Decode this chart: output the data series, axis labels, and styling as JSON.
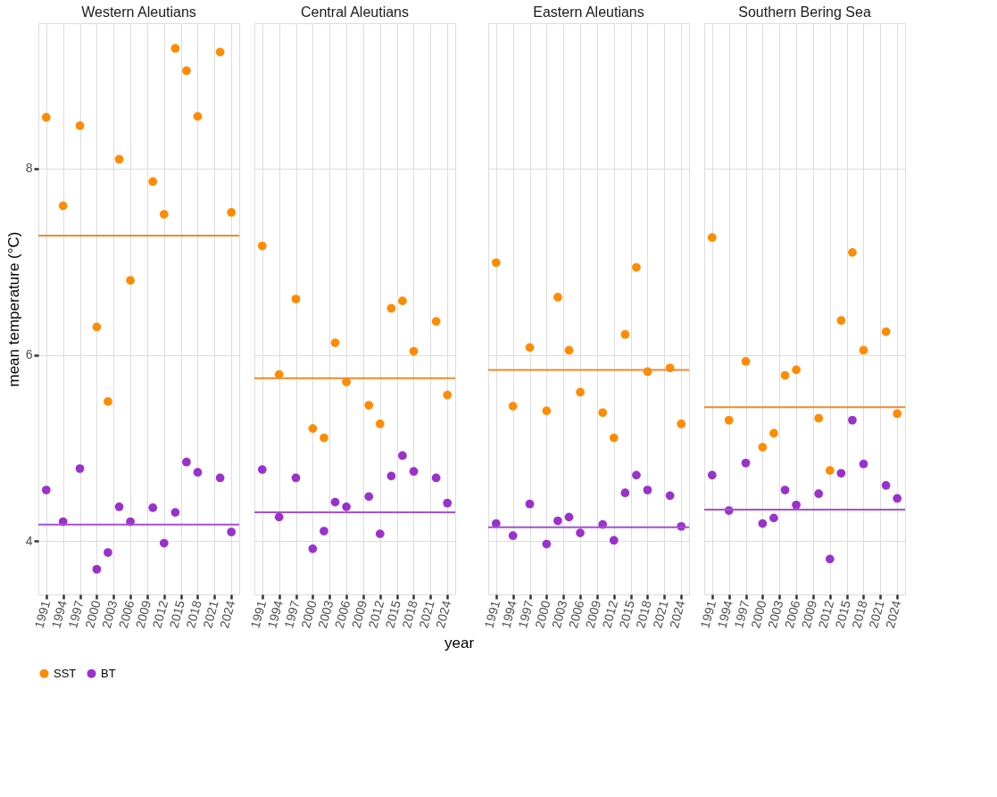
{
  "chart_data": [
    {
      "type": "scatter",
      "title": "Western Aleutians",
      "ylabel": "mean temperature (°C)",
      "legend": "bottom",
      "grid": true,
      "marker": "circle",
      "x": [
        1991,
        1994,
        1997,
        2000,
        2002,
        2004,
        2006,
        2010,
        2012,
        2014,
        2016,
        2018,
        2022,
        2024
      ],
      "xlim": [
        1989.6,
        2025.4
      ],
      "xticks": [
        1991,
        1994,
        1997,
        2000,
        2003,
        2006,
        2009,
        2012,
        2015,
        2018,
        2021,
        2024
      ],
      "ylim": [
        3.43,
        9.56
      ],
      "yticks": [
        4,
        6,
        8
      ],
      "series": [
        {
          "name": "SST",
          "color": "#ff8c00",
          "values": [
            8.55,
            7.6,
            8.46,
            6.3,
            5.5,
            8.1,
            6.8,
            7.86,
            7.51,
            9.29,
            9.05,
            8.56,
            9.25,
            7.53
          ]
        },
        {
          "name": "BT",
          "color": "#9932cc",
          "values": [
            4.55,
            4.21,
            4.78,
            3.7,
            3.88,
            4.37,
            4.21,
            4.36,
            3.98,
            4.31,
            4.85,
            4.74,
            4.68,
            4.1
          ]
        }
      ],
      "ref_lines": [
        {
          "axis": "y",
          "value": 7.28,
          "color": "#ee8a2a"
        },
        {
          "axis": "y",
          "value": 4.18,
          "color": "#a64fd6"
        }
      ]
    },
    {
      "type": "scatter",
      "title": "Central Aleutians",
      "xlabel": "year",
      "grid": true,
      "marker": "circle",
      "tick_labels": "x",
      "x": [
        1991,
        1994,
        1997,
        2000,
        2002,
        2004,
        2006,
        2010,
        2012,
        2014,
        2016,
        2018,
        2022,
        2024
      ],
      "xlim": [
        1989.6,
        2025.4
      ],
      "xticks": [
        1991,
        1994,
        1997,
        2000,
        2003,
        2006,
        2009,
        2012,
        2015,
        2018,
        2021,
        2024
      ],
      "ylim": [
        3.43,
        9.56
      ],
      "yticks": [
        4,
        6,
        8
      ],
      "series": [
        {
          "name": "SST",
          "color": "#ff8c00",
          "values": [
            7.17,
            5.79,
            6.6,
            5.21,
            5.11,
            6.13,
            5.71,
            5.46,
            5.26,
            6.5,
            6.58,
            6.04,
            6.36,
            5.57
          ]
        },
        {
          "name": "BT",
          "color": "#9932cc",
          "values": [
            4.77,
            4.26,
            4.68,
            3.92,
            4.11,
            4.42,
            4.37,
            4.48,
            4.08,
            4.7,
            4.92,
            4.75,
            4.68,
            4.41
          ]
        }
      ],
      "ref_lines": [
        {
          "axis": "y",
          "value": 5.75,
          "color": "#ee8a2a"
        },
        {
          "axis": "y",
          "value": 4.31,
          "color": "#a64fd6"
        }
      ]
    },
    {
      "type": "scatter",
      "title": "Eastern Aleutians",
      "grid": true,
      "marker": "circle",
      "tick_labels": "x",
      "x": [
        1991,
        1994,
        1997,
        2000,
        2002,
        2004,
        2006,
        2010,
        2012,
        2014,
        2016,
        2018,
        2022,
        2024
      ],
      "xlim": [
        1989.6,
        2025.4
      ],
      "xticks": [
        1991,
        1994,
        1997,
        2000,
        2003,
        2006,
        2009,
        2012,
        2015,
        2018,
        2021,
        2024
      ],
      "ylim": [
        3.43,
        9.56
      ],
      "yticks": [
        4,
        6,
        8
      ],
      "series": [
        {
          "name": "SST",
          "color": "#ff8c00",
          "values": [
            6.99,
            5.45,
            6.08,
            5.4,
            6.62,
            6.05,
            5.6,
            5.38,
            5.11,
            6.22,
            6.94,
            5.82,
            5.86,
            5.26
          ]
        },
        {
          "name": "BT",
          "color": "#9932cc",
          "values": [
            4.19,
            4.06,
            4.4,
            3.97,
            4.22,
            4.26,
            4.09,
            4.18,
            4.01,
            4.52,
            4.71,
            4.55,
            4.49,
            4.16
          ]
        }
      ],
      "ref_lines": [
        {
          "axis": "y",
          "value": 5.84,
          "color": "#ee8a2a"
        },
        {
          "axis": "y",
          "value": 4.15,
          "color": "#a64fd6"
        }
      ]
    },
    {
      "type": "scatter",
      "title": "Southern Bering Sea",
      "grid": true,
      "marker": "circle",
      "tick_labels": "x",
      "x": [
        1991,
        1994,
        1997,
        2000,
        2002,
        2004,
        2006,
        2010,
        2012,
        2014,
        2016,
        2018,
        2022,
        2024
      ],
      "xlim": [
        1989.6,
        2025.4
      ],
      "xticks": [
        1991,
        1994,
        1997,
        2000,
        2003,
        2006,
        2009,
        2012,
        2015,
        2018,
        2021,
        2024
      ],
      "ylim": [
        3.43,
        9.56
      ],
      "yticks": [
        4,
        6,
        8
      ],
      "series": [
        {
          "name": "SST",
          "color": "#ff8c00",
          "values": [
            7.26,
            5.3,
            5.93,
            5.01,
            5.16,
            5.78,
            5.84,
            5.32,
            4.76,
            6.37,
            7.1,
            6.05,
            6.25,
            5.37
          ]
        },
        {
          "name": "BT",
          "color": "#9932cc",
          "values": [
            4.71,
            4.33,
            4.84,
            4.19,
            4.25,
            4.55,
            4.39,
            4.51,
            3.81,
            4.73,
            5.3,
            4.83,
            4.6,
            4.46
          ]
        }
      ],
      "ref_lines": [
        {
          "axis": "y",
          "value": 5.44,
          "color": "#ee8a2a"
        },
        {
          "axis": "y",
          "value": 4.34,
          "color": "#a64fd6"
        }
      ]
    }
  ]
}
